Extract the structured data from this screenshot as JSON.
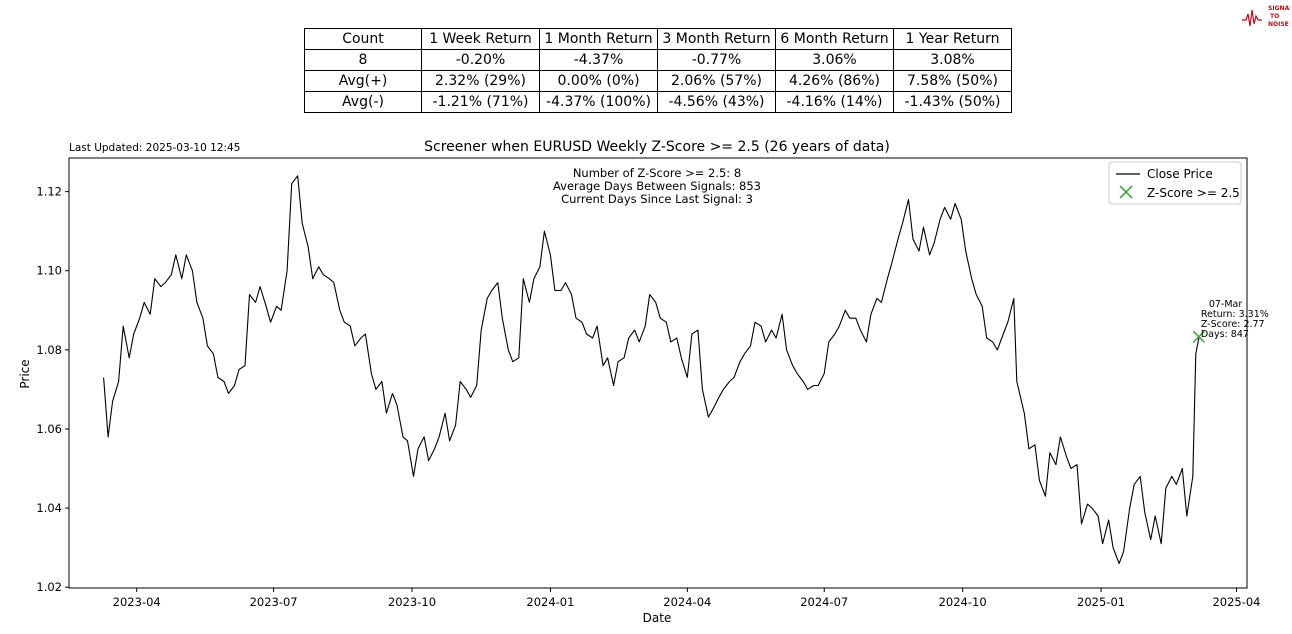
{
  "logo": {
    "text_lines": [
      "SIGNAL",
      "TO",
      "NOISE"
    ],
    "color": "#b5121b"
  },
  "table": {
    "headers": [
      "Count",
      "1 Week Return",
      "1 Month Return",
      "3 Month Return",
      "6 Month Return",
      "1 Year Return"
    ],
    "rows": [
      [
        "8",
        "-0.20%",
        "-4.37%",
        "-0.77%",
        "3.06%",
        "3.08%"
      ],
      [
        "Avg(+)",
        "2.32% (29%)",
        "0.00% (0%)",
        "2.06% (57%)",
        "4.26% (86%)",
        "7.58% (50%)"
      ],
      [
        "Avg(-)",
        "-1.21% (71%)",
        "-4.37% (100%)",
        "-4.56% (43%)",
        "-4.16% (14%)",
        "-1.43% (50%)"
      ]
    ]
  },
  "chart_data": {
    "type": "line",
    "title": "Screener when EURUSD Weekly Z-Score >= 2.5 (26 years of data)",
    "last_updated": "Last Updated: 2025-03-10 12:45",
    "xlabel": "Date",
    "ylabel": "Price",
    "xlim": [
      "2023-02-15",
      "2025-04-08"
    ],
    "ylim": [
      1.0198,
      1.1285
    ],
    "x_ticks": [
      {
        "date": "2023-04-01",
        "label": "2023-04"
      },
      {
        "date": "2023-07-01",
        "label": "2023-07"
      },
      {
        "date": "2023-10-01",
        "label": "2023-10"
      },
      {
        "date": "2024-01-01",
        "label": "2024-01"
      },
      {
        "date": "2024-04-01",
        "label": "2024-04"
      },
      {
        "date": "2024-07-01",
        "label": "2024-07"
      },
      {
        "date": "2024-10-01",
        "label": "2024-10"
      },
      {
        "date": "2025-01-01",
        "label": "2025-01"
      },
      {
        "date": "2025-04-01",
        "label": "2025-04"
      }
    ],
    "y_ticks": [
      {
        "value": 1.02,
        "label": "1.02"
      },
      {
        "value": 1.04,
        "label": "1.04"
      },
      {
        "value": 1.06,
        "label": "1.06"
      },
      {
        "value": 1.08,
        "label": "1.08"
      },
      {
        "value": 1.1,
        "label": "1.10"
      },
      {
        "value": 1.12,
        "label": "1.12"
      }
    ],
    "stats_text": [
      "Number of Z-Score >= 2.5: 8",
      "Average Days Between Signals: 853",
      "Current Days Since Last Signal: 3"
    ],
    "legend": {
      "location": "top-right",
      "entries": [
        "Close Price",
        "Z-Score >= 2.5"
      ]
    },
    "series": [
      {
        "name": "Close Price",
        "color": "#000000",
        "points": [
          [
            "2023-03-10",
            1.073
          ],
          [
            "2023-03-13",
            1.058
          ],
          [
            "2023-03-16",
            1.067
          ],
          [
            "2023-03-20",
            1.072
          ],
          [
            "2023-03-23",
            1.086
          ],
          [
            "2023-03-27",
            1.078
          ],
          [
            "2023-03-30",
            1.084
          ],
          [
            "2023-04-03",
            1.088
          ],
          [
            "2023-04-06",
            1.092
          ],
          [
            "2023-04-10",
            1.089
          ],
          [
            "2023-04-13",
            1.098
          ],
          [
            "2023-04-17",
            1.096
          ],
          [
            "2023-04-20",
            1.097
          ],
          [
            "2023-04-24",
            1.099
          ],
          [
            "2023-04-27",
            1.104
          ],
          [
            "2023-05-01",
            1.098
          ],
          [
            "2023-05-04",
            1.104
          ],
          [
            "2023-05-08",
            1.1
          ],
          [
            "2023-05-11",
            1.092
          ],
          [
            "2023-05-15",
            1.088
          ],
          [
            "2023-05-18",
            1.081
          ],
          [
            "2023-05-22",
            1.079
          ],
          [
            "2023-05-25",
            1.073
          ],
          [
            "2023-05-29",
            1.072
          ],
          [
            "2023-06-01",
            1.069
          ],
          [
            "2023-06-05",
            1.071
          ],
          [
            "2023-06-08",
            1.075
          ],
          [
            "2023-06-12",
            1.076
          ],
          [
            "2023-06-15",
            1.094
          ],
          [
            "2023-06-19",
            1.092
          ],
          [
            "2023-06-22",
            1.096
          ],
          [
            "2023-06-26",
            1.091
          ],
          [
            "2023-06-29",
            1.087
          ],
          [
            "2023-07-03",
            1.091
          ],
          [
            "2023-07-06",
            1.09
          ],
          [
            "2023-07-10",
            1.1
          ],
          [
            "2023-07-13",
            1.122
          ],
          [
            "2023-07-17",
            1.124
          ],
          [
            "2023-07-20",
            1.112
          ],
          [
            "2023-07-24",
            1.106
          ],
          [
            "2023-07-27",
            1.098
          ],
          [
            "2023-07-31",
            1.101
          ],
          [
            "2023-08-03",
            1.099
          ],
          [
            "2023-08-07",
            1.098
          ],
          [
            "2023-08-10",
            1.097
          ],
          [
            "2023-08-14",
            1.09
          ],
          [
            "2023-08-17",
            1.087
          ],
          [
            "2023-08-21",
            1.086
          ],
          [
            "2023-08-24",
            1.081
          ],
          [
            "2023-08-28",
            1.083
          ],
          [
            "2023-08-31",
            1.084
          ],
          [
            "2023-09-04",
            1.074
          ],
          [
            "2023-09-07",
            1.07
          ],
          [
            "2023-09-11",
            1.072
          ],
          [
            "2023-09-14",
            1.064
          ],
          [
            "2023-09-18",
            1.069
          ],
          [
            "2023-09-21",
            1.066
          ],
          [
            "2023-09-25",
            1.058
          ],
          [
            "2023-09-28",
            1.057
          ],
          [
            "2023-10-02",
            1.048
          ],
          [
            "2023-10-05",
            1.055
          ],
          [
            "2023-10-09",
            1.058
          ],
          [
            "2023-10-12",
            1.052
          ],
          [
            "2023-10-16",
            1.055
          ],
          [
            "2023-10-19",
            1.058
          ],
          [
            "2023-10-23",
            1.064
          ],
          [
            "2023-10-26",
            1.057
          ],
          [
            "2023-10-30",
            1.061
          ],
          [
            "2023-11-02",
            1.072
          ],
          [
            "2023-11-06",
            1.07
          ],
          [
            "2023-11-09",
            1.068
          ],
          [
            "2023-11-13",
            1.071
          ],
          [
            "2023-11-16",
            1.085
          ],
          [
            "2023-11-20",
            1.093
          ],
          [
            "2023-11-23",
            1.095
          ],
          [
            "2023-11-27",
            1.097
          ],
          [
            "2023-11-30",
            1.088
          ],
          [
            "2023-12-04",
            1.08
          ],
          [
            "2023-12-07",
            1.077
          ],
          [
            "2023-12-11",
            1.078
          ],
          [
            "2023-12-14",
            1.098
          ],
          [
            "2023-12-18",
            1.092
          ],
          [
            "2023-12-21",
            1.098
          ],
          [
            "2023-12-25",
            1.101
          ],
          [
            "2023-12-28",
            1.11
          ],
          [
            "2024-01-01",
            1.104
          ],
          [
            "2024-01-04",
            1.095
          ],
          [
            "2024-01-08",
            1.095
          ],
          [
            "2024-01-11",
            1.097
          ],
          [
            "2024-01-15",
            1.094
          ],
          [
            "2024-01-18",
            1.088
          ],
          [
            "2024-01-22",
            1.087
          ],
          [
            "2024-01-25",
            1.084
          ],
          [
            "2024-01-29",
            1.083
          ],
          [
            "2024-02-01",
            1.086
          ],
          [
            "2024-02-05",
            1.076
          ],
          [
            "2024-02-08",
            1.078
          ],
          [
            "2024-02-12",
            1.071
          ],
          [
            "2024-02-15",
            1.077
          ],
          [
            "2024-02-19",
            1.078
          ],
          [
            "2024-02-22",
            1.083
          ],
          [
            "2024-02-26",
            1.085
          ],
          [
            "2024-02-29",
            1.082
          ],
          [
            "2024-03-04",
            1.086
          ],
          [
            "2024-03-07",
            1.094
          ],
          [
            "2024-03-11",
            1.092
          ],
          [
            "2024-03-14",
            1.088
          ],
          [
            "2024-03-18",
            1.087
          ],
          [
            "2024-03-21",
            1.082
          ],
          [
            "2024-03-25",
            1.083
          ],
          [
            "2024-03-28",
            1.078
          ],
          [
            "2024-04-01",
            1.073
          ],
          [
            "2024-04-04",
            1.084
          ],
          [
            "2024-04-08",
            1.085
          ],
          [
            "2024-04-11",
            1.07
          ],
          [
            "2024-04-15",
            1.063
          ],
          [
            "2024-04-18",
            1.065
          ],
          [
            "2024-04-22",
            1.068
          ],
          [
            "2024-04-25",
            1.07
          ],
          [
            "2024-04-29",
            1.072
          ],
          [
            "2024-05-02",
            1.073
          ],
          [
            "2024-05-06",
            1.077
          ],
          [
            "2024-05-09",
            1.079
          ],
          [
            "2024-05-13",
            1.081
          ],
          [
            "2024-05-16",
            1.087
          ],
          [
            "2024-05-20",
            1.086
          ],
          [
            "2024-05-23",
            1.082
          ],
          [
            "2024-05-27",
            1.085
          ],
          [
            "2024-05-30",
            1.083
          ],
          [
            "2024-06-03",
            1.089
          ],
          [
            "2024-06-06",
            1.08
          ],
          [
            "2024-06-10",
            1.076
          ],
          [
            "2024-06-13",
            1.074
          ],
          [
            "2024-06-17",
            1.072
          ],
          [
            "2024-06-20",
            1.07
          ],
          [
            "2024-06-24",
            1.071
          ],
          [
            "2024-06-27",
            1.071
          ],
          [
            "2024-07-01",
            1.074
          ],
          [
            "2024-07-04",
            1.082
          ],
          [
            "2024-07-08",
            1.084
          ],
          [
            "2024-07-11",
            1.086
          ],
          [
            "2024-07-15",
            1.09
          ],
          [
            "2024-07-18",
            1.088
          ],
          [
            "2024-07-22",
            1.088
          ],
          [
            "2024-07-25",
            1.085
          ],
          [
            "2024-07-29",
            1.082
          ],
          [
            "2024-08-01",
            1.089
          ],
          [
            "2024-08-05",
            1.093
          ],
          [
            "2024-08-08",
            1.092
          ],
          [
            "2024-08-12",
            1.098
          ],
          [
            "2024-08-15",
            1.102
          ],
          [
            "2024-08-19",
            1.108
          ],
          [
            "2024-08-22",
            1.112
          ],
          [
            "2024-08-26",
            1.118
          ],
          [
            "2024-08-29",
            1.108
          ],
          [
            "2024-09-02",
            1.105
          ],
          [
            "2024-09-05",
            1.111
          ],
          [
            "2024-09-09",
            1.104
          ],
          [
            "2024-09-12",
            1.107
          ],
          [
            "2024-09-16",
            1.113
          ],
          [
            "2024-09-19",
            1.116
          ],
          [
            "2024-09-23",
            1.113
          ],
          [
            "2024-09-26",
            1.117
          ],
          [
            "2024-09-30",
            1.113
          ],
          [
            "2024-10-03",
            1.105
          ],
          [
            "2024-10-07",
            1.098
          ],
          [
            "2024-10-10",
            1.094
          ],
          [
            "2024-10-14",
            1.091
          ],
          [
            "2024-10-17",
            1.083
          ],
          [
            "2024-10-21",
            1.082
          ],
          [
            "2024-10-24",
            1.08
          ],
          [
            "2024-10-28",
            1.084
          ],
          [
            "2024-10-31",
            1.087
          ],
          [
            "2024-11-04",
            1.093
          ],
          [
            "2024-11-06",
            1.072
          ],
          [
            "2024-11-11",
            1.064
          ],
          [
            "2024-11-14",
            1.055
          ],
          [
            "2024-11-18",
            1.056
          ],
          [
            "2024-11-21",
            1.047
          ],
          [
            "2024-11-25",
            1.043
          ],
          [
            "2024-11-28",
            1.054
          ],
          [
            "2024-12-02",
            1.051
          ],
          [
            "2024-12-05",
            1.058
          ],
          [
            "2024-12-09",
            1.053
          ],
          [
            "2024-12-12",
            1.05
          ],
          [
            "2024-12-16",
            1.051
          ],
          [
            "2024-12-19",
            1.036
          ],
          [
            "2024-12-23",
            1.041
          ],
          [
            "2024-12-26",
            1.04
          ],
          [
            "2024-12-30",
            1.038
          ],
          [
            "2025-01-02",
            1.031
          ],
          [
            "2025-01-06",
            1.037
          ],
          [
            "2025-01-09",
            1.03
          ],
          [
            "2025-01-13",
            1.026
          ],
          [
            "2025-01-16",
            1.029
          ],
          [
            "2025-01-20",
            1.04
          ],
          [
            "2025-01-23",
            1.046
          ],
          [
            "2025-01-27",
            1.048
          ],
          [
            "2025-01-30",
            1.039
          ],
          [
            "2025-02-03",
            1.032
          ],
          [
            "2025-02-06",
            1.038
          ],
          [
            "2025-02-10",
            1.031
          ],
          [
            "2025-02-13",
            1.045
          ],
          [
            "2025-02-17",
            1.048
          ],
          [
            "2025-02-20",
            1.046
          ],
          [
            "2025-02-24",
            1.05
          ],
          [
            "2025-02-27",
            1.038
          ],
          [
            "2025-03-03",
            1.048
          ],
          [
            "2025-03-05",
            1.079
          ],
          [
            "2025-03-07",
            1.083
          ]
        ]
      }
    ],
    "markers": [
      {
        "name": "Z-Score >= 2.5",
        "date": "2025-03-07",
        "value": 1.0833,
        "color": "#4aa34a",
        "annotation": [
          "07-Mar",
          "Return: 3.31%",
          "Z-Score: 2.77",
          "Days: 847"
        ]
      }
    ]
  }
}
